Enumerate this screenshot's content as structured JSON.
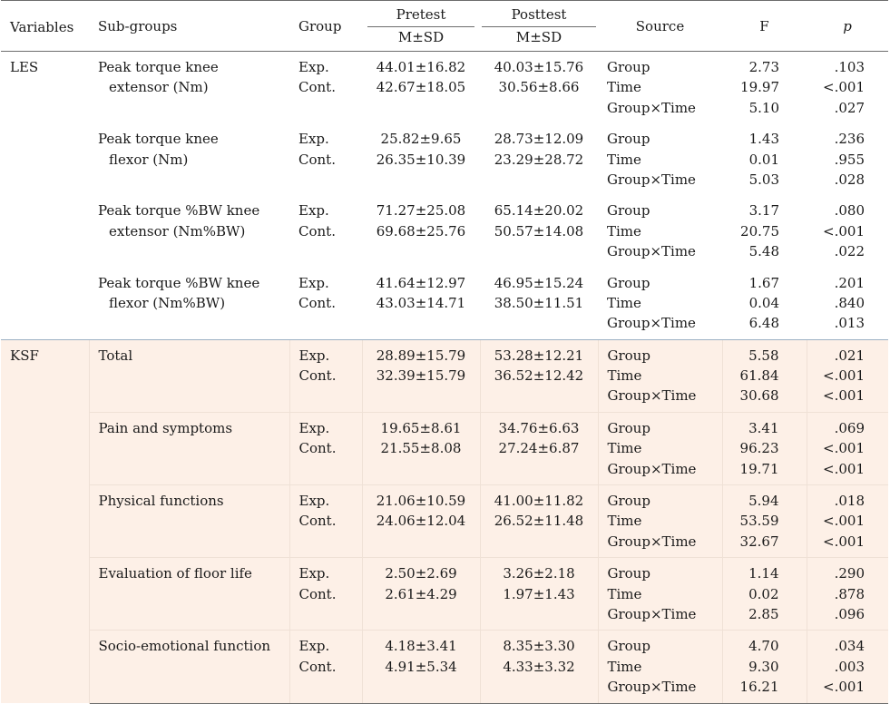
{
  "header": {
    "variables": "Variables",
    "subgroups": "Sub-groups",
    "group": "Group",
    "pretest": "Pretest",
    "posttest": "Posttest",
    "msd_pre": "M±SD",
    "msd_post": "M±SD",
    "source": "Source",
    "f": "F",
    "p": "p"
  },
  "sections": [
    {
      "variable": "LES",
      "rows": [
        {
          "sub": [
            "Peak torque knee",
            "extensor (Nm)"
          ],
          "groups": [
            "Exp.",
            "Cont."
          ],
          "pre": [
            "44.01±16.82",
            "42.67±18.05"
          ],
          "post": [
            "40.03±15.76",
            "30.56±8.66"
          ],
          "source": [
            "Group",
            "Time",
            "Group×Time"
          ],
          "f": [
            "2.73",
            "19.97",
            "5.10"
          ],
          "p": [
            ".103",
            "<.001",
            ".027"
          ]
        },
        {
          "sub": [
            "Peak torque knee",
            "flexor (Nm)"
          ],
          "groups": [
            "Exp.",
            "Cont."
          ],
          "pre": [
            "25.82±9.65",
            "26.35±10.39"
          ],
          "post": [
            "28.73±12.09",
            "23.29±28.72"
          ],
          "source": [
            "Group",
            "Time",
            "Group×Time"
          ],
          "f": [
            "1.43",
            "0.01",
            "5.03"
          ],
          "p": [
            ".236",
            ".955",
            ".028"
          ]
        },
        {
          "sub": [
            "Peak torque %BW knee",
            "extensor (Nm%BW)"
          ],
          "groups": [
            "Exp.",
            "Cont."
          ],
          "pre": [
            "71.27±25.08",
            "69.68±25.76"
          ],
          "post": [
            "65.14±20.02",
            "50.57±14.08"
          ],
          "source": [
            "Group",
            "Time",
            "Group×Time"
          ],
          "f": [
            "3.17",
            "20.75",
            "5.48"
          ],
          "p": [
            ".080",
            "<.001",
            ".022"
          ]
        },
        {
          "sub": [
            "Peak torque %BW knee",
            "flexor (Nm%BW)"
          ],
          "groups": [
            "Exp.",
            "Cont."
          ],
          "pre": [
            "41.64±12.97",
            "43.03±14.71"
          ],
          "post": [
            "46.95±15.24",
            "38.50±11.51"
          ],
          "source": [
            "Group",
            "Time",
            "Group×Time"
          ],
          "f": [
            "1.67",
            "0.04",
            "6.48"
          ],
          "p": [
            ".201",
            ".840",
            ".013"
          ]
        }
      ]
    },
    {
      "variable": "KSF",
      "rows": [
        {
          "sub": [
            "Total"
          ],
          "groups": [
            "Exp.",
            "Cont."
          ],
          "pre": [
            "28.89±15.79",
            "32.39±15.79"
          ],
          "post": [
            "53.28±12.21",
            "36.52±12.42"
          ],
          "source": [
            "Group",
            "Time",
            "Group×Time"
          ],
          "f": [
            "5.58",
            "61.84",
            "30.68"
          ],
          "p": [
            ".021",
            "<.001",
            "<.001"
          ]
        },
        {
          "sub": [
            "Pain and symptoms"
          ],
          "groups": [
            "Exp.",
            "Cont."
          ],
          "pre": [
            "19.65±8.61",
            "21.55±8.08"
          ],
          "post": [
            "34.76±6.63",
            "27.24±6.87"
          ],
          "source": [
            "Group",
            "Time",
            "Group×Time"
          ],
          "f": [
            "3.41",
            "96.23",
            "19.71"
          ],
          "p": [
            ".069",
            "<.001",
            "<.001"
          ]
        },
        {
          "sub": [
            "Physical functions"
          ],
          "groups": [
            "Exp.",
            "Cont."
          ],
          "pre": [
            "21.06±10.59",
            "24.06±12.04"
          ],
          "post": [
            "41.00±11.82",
            "26.52±11.48"
          ],
          "source": [
            "Group",
            "Time",
            "Group×Time"
          ],
          "f": [
            "5.94",
            "53.59",
            "32.67"
          ],
          "p": [
            ".018",
            "<.001",
            "<.001"
          ]
        },
        {
          "sub": [
            "Evaluation of floor life"
          ],
          "groups": [
            "Exp.",
            "Cont."
          ],
          "pre": [
            "2.50±2.69",
            "2.61±4.29"
          ],
          "post": [
            "3.26±2.18",
            "1.97±1.43"
          ],
          "source": [
            "Group",
            "Time",
            "Group×Time"
          ],
          "f": [
            "1.14",
            "0.02",
            "2.85"
          ],
          "p": [
            ".290",
            ".878",
            ".096"
          ]
        },
        {
          "sub": [
            "Socio-emotional function"
          ],
          "groups": [
            "Exp.",
            "Cont."
          ],
          "pre": [
            "4.18±3.41",
            "4.91±5.34"
          ],
          "post": [
            "8.35±3.30",
            "4.33±3.32"
          ],
          "source": [
            "Group",
            "Time",
            "Group×Time"
          ],
          "f": [
            "4.70",
            "9.30",
            "16.21"
          ],
          "p": [
            ".034",
            ".003",
            "<.001"
          ]
        }
      ]
    }
  ]
}
